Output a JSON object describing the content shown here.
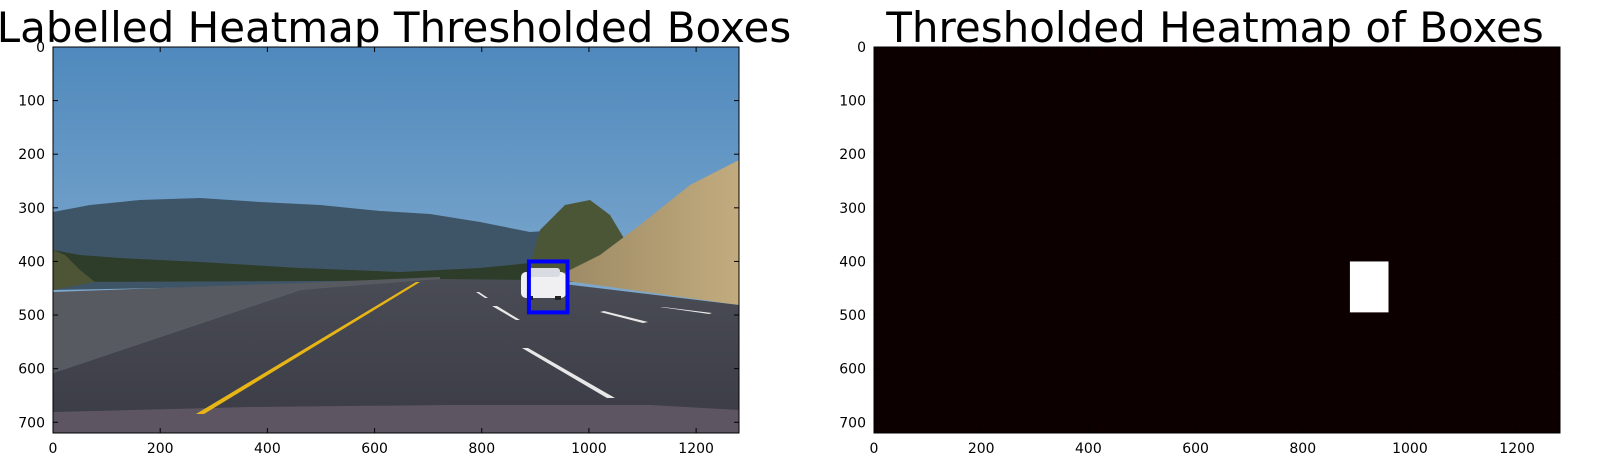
{
  "chart_data": [
    {
      "type": "image",
      "title": "Labelled Heatmap Thresholded Boxes",
      "xlim": [
        0,
        1280
      ],
      "ylim": [
        720,
        0
      ],
      "xticks": [
        0,
        200,
        400,
        600,
        800,
        1000,
        1200
      ],
      "yticks": [
        0,
        100,
        200,
        300,
        400,
        500,
        600,
        700
      ],
      "boxes": [
        {
          "x0": 888,
          "y0": 400,
          "x1": 960,
          "y1": 495,
          "color": "#0000ff"
        }
      ]
    },
    {
      "type": "heatmap",
      "title": "Thresholded Heatmap of Boxes",
      "xlim": [
        0,
        1280
      ],
      "ylim": [
        720,
        0
      ],
      "xticks": [
        0,
        200,
        400,
        600,
        800,
        1000,
        1200
      ],
      "yticks": [
        0,
        100,
        200,
        300,
        400,
        500,
        600,
        700
      ],
      "background_color": "#0d0000",
      "hot_color": "#ffffff",
      "hot_regions": [
        {
          "x0": 888,
          "y0": 400,
          "x1": 960,
          "y1": 495
        }
      ]
    }
  ]
}
